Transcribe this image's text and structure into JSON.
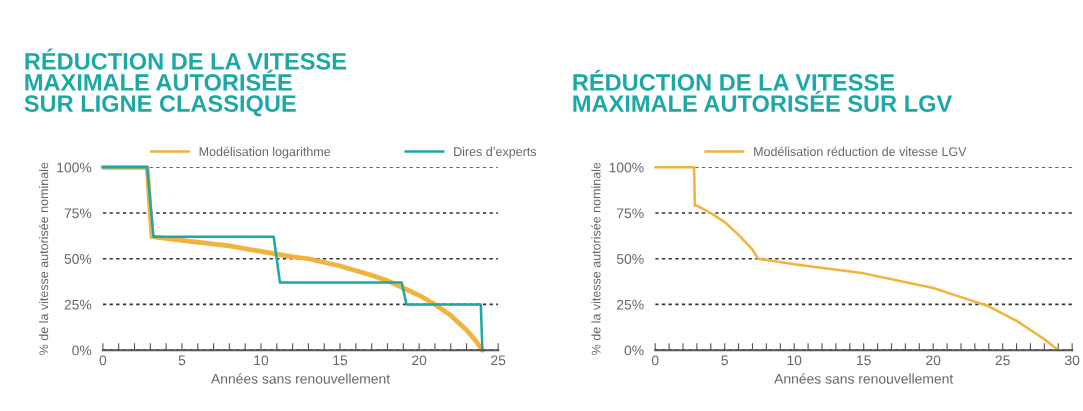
{
  "chart_data": [
    {
      "type": "line",
      "title": "RÉDUCTION DE LA VITESSE\nMAXIMALE AUTORISÉE\nSUR LIGNE CLASSIQUE",
      "xlabel": "Années sans renouvellement",
      "ylabel": "% de la vitesse autorisée nominale",
      "xlim": [
        0,
        25
      ],
      "xticks": [
        0,
        {
          "value": 1,
          "label": null
        },
        {
          "value": 2,
          "label": null
        },
        {
          "value": 3,
          "label": null
        },
        {
          "value": 4,
          "label": null
        },
        5,
        {
          "value": 6,
          "label": null
        },
        {
          "value": 7,
          "label": null
        },
        {
          "value": 8,
          "label": null
        },
        {
          "value": 9,
          "label": null
        },
        10,
        {
          "value": 11,
          "label": null
        },
        {
          "value": 12,
          "label": null
        },
        {
          "value": 13,
          "label": null
        },
        {
          "value": 14,
          "label": null
        },
        15,
        {
          "value": 16,
          "label": null
        },
        {
          "value": 17,
          "label": null
        },
        {
          "value": 18,
          "label": null
        },
        {
          "value": 19,
          "label": null
        },
        20,
        {
          "value": 21,
          "label": null
        },
        {
          "value": 22,
          "label": null
        },
        {
          "value": 23,
          "label": null
        },
        {
          "value": 24,
          "label": null
        },
        25
      ],
      "ylim": [
        0,
        100
      ],
      "yticks": [
        {
          "value": 0,
          "label": "0%"
        },
        {
          "value": 25,
          "label": "25%"
        },
        {
          "value": 50,
          "label": "50%"
        },
        {
          "value": 75,
          "label": "75%"
        },
        {
          "value": 100,
          "label": "100%"
        }
      ],
      "grid": "y",
      "legend": "top",
      "line_style": "solid",
      "marker": "none",
      "series": [
        {
          "name": "Modélisation logarithme",
          "color": "#f2b33d",
          "x": [
            0,
            2.8,
            3.1,
            5,
            8,
            10,
            12,
            13,
            15,
            17,
            18,
            19,
            20,
            21,
            22,
            23,
            23.5,
            24
          ],
          "values": [
            100,
            100,
            62,
            60,
            57,
            54,
            51,
            50,
            46,
            41,
            38,
            34,
            30,
            25,
            19,
            11,
            6,
            0
          ]
        },
        {
          "name": "Dires d’experts",
          "color": "#1ba8a6",
          "x": [
            0,
            2.8,
            3.2,
            10.8,
            11.2,
            18.9,
            19.2,
            23.9,
            24
          ],
          "values": [
            100,
            100,
            62,
            62,
            37,
            37,
            25,
            25,
            0
          ]
        }
      ]
    },
    {
      "type": "line",
      "title": "RÉDUCTION DE LA VITESSE\nMAXIMALE AUTORISÉE SUR LGV",
      "xlabel": "Années sans renouvellement",
      "ylabel": "% de la vitesse autorisée nominale",
      "xlim": [
        0,
        30
      ],
      "xticks": [
        0,
        {
          "value": 1,
          "label": null
        },
        {
          "value": 2,
          "label": null
        },
        {
          "value": 3,
          "label": null
        },
        {
          "value": 4,
          "label": null
        },
        5,
        {
          "value": 6,
          "label": null
        },
        {
          "value": 7,
          "label": null
        },
        {
          "value": 8,
          "label": null
        },
        {
          "value": 9,
          "label": null
        },
        10,
        {
          "value": 11,
          "label": null
        },
        {
          "value": 12,
          "label": null
        },
        {
          "value": 13,
          "label": null
        },
        {
          "value": 14,
          "label": null
        },
        15,
        {
          "value": 16,
          "label": null
        },
        {
          "value": 17,
          "label": null
        },
        {
          "value": 18,
          "label": null
        },
        {
          "value": 19,
          "label": null
        },
        20,
        {
          "value": 21,
          "label": null
        },
        {
          "value": 22,
          "label": null
        },
        {
          "value": 23,
          "label": null
        },
        {
          "value": 24,
          "label": null
        },
        25,
        {
          "value": 26,
          "label": null
        },
        {
          "value": 27,
          "label": null
        },
        {
          "value": 28,
          "label": null
        },
        {
          "value": 29,
          "label": null
        },
        30
      ],
      "ylim": [
        0,
        100
      ],
      "yticks": [
        {
          "value": 0,
          "label": "0%"
        },
        {
          "value": 25,
          "label": "25%"
        },
        {
          "value": 50,
          "label": "50%"
        },
        {
          "value": 75,
          "label": "75%"
        },
        {
          "value": 100,
          "label": "100%"
        }
      ],
      "grid": "y",
      "legend": "top",
      "line_style": "solid",
      "marker": "none",
      "series": [
        {
          "name": "Modélisation réduction de vitesse LGV",
          "color": "#f2b33d",
          "x": [
            0,
            2.8,
            2.85,
            3,
            4,
            5,
            6,
            7,
            7.4,
            10,
            15,
            20,
            22,
            24,
            26,
            28,
            29
          ],
          "values": [
            100,
            100,
            79,
            79,
            75,
            70,
            63,
            55,
            50,
            47,
            42,
            34,
            29,
            24,
            16,
            6,
            0
          ]
        }
      ]
    }
  ]
}
